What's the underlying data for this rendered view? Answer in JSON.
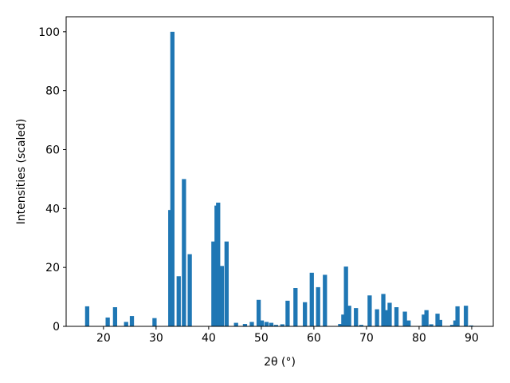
{
  "chart_data": {
    "type": "bar",
    "xlabel": "2θ (°)",
    "ylabel": "Intensities (scaled)",
    "x": [
      16.9,
      20.8,
      22.2,
      24.3,
      25.4,
      29.7,
      32.7,
      33.1,
      34.3,
      35.3,
      36.4,
      40.9,
      41.5,
      41.8,
      42.5,
      43.4,
      45.2,
      46.9,
      48.2,
      49.5,
      50.1,
      51.0,
      51.9,
      52.8,
      54.0,
      55.0,
      56.5,
      58.3,
      59.6,
      60.8,
      62.1,
      65.0,
      65.6,
      66.1,
      66.7,
      68.0,
      69.0,
      70.6,
      72.0,
      73.2,
      73.8,
      74.4,
      75.7,
      77.3,
      78.0,
      80.9,
      81.4,
      82.3,
      83.5,
      84.0,
      86.3,
      86.9,
      87.3,
      88.9,
      89.9
    ],
    "values": [
      6.8,
      3,
      6.5,
      1.5,
      3.5,
      2.8,
      39.5,
      100,
      17,
      50,
      24.5,
      28.8,
      41,
      42,
      20.5,
      28.8,
      1.2,
      0.8,
      1.5,
      9,
      2,
      1.5,
      1.2,
      0.5,
      0.7,
      8.7,
      13,
      8.2,
      18.2,
      13.3,
      17.5,
      0.8,
      4,
      20.3,
      7,
      6.2,
      0.5,
      10.5,
      5.8,
      11,
      5.5,
      8,
      6.5,
      5,
      2,
      4,
      5.5,
      0.7,
      4.3,
      2.2,
      0.5,
      2,
      6.8,
      7,
      0.3
    ],
    "color": "#1f77b4",
    "xlim": [
      12.9,
      94.1
    ],
    "ylim": [
      0,
      105.1
    ],
    "xticks": [
      20,
      30,
      40,
      50,
      60,
      70,
      80,
      90
    ],
    "yticks": [
      0,
      20,
      40,
      60,
      80,
      100
    ]
  }
}
